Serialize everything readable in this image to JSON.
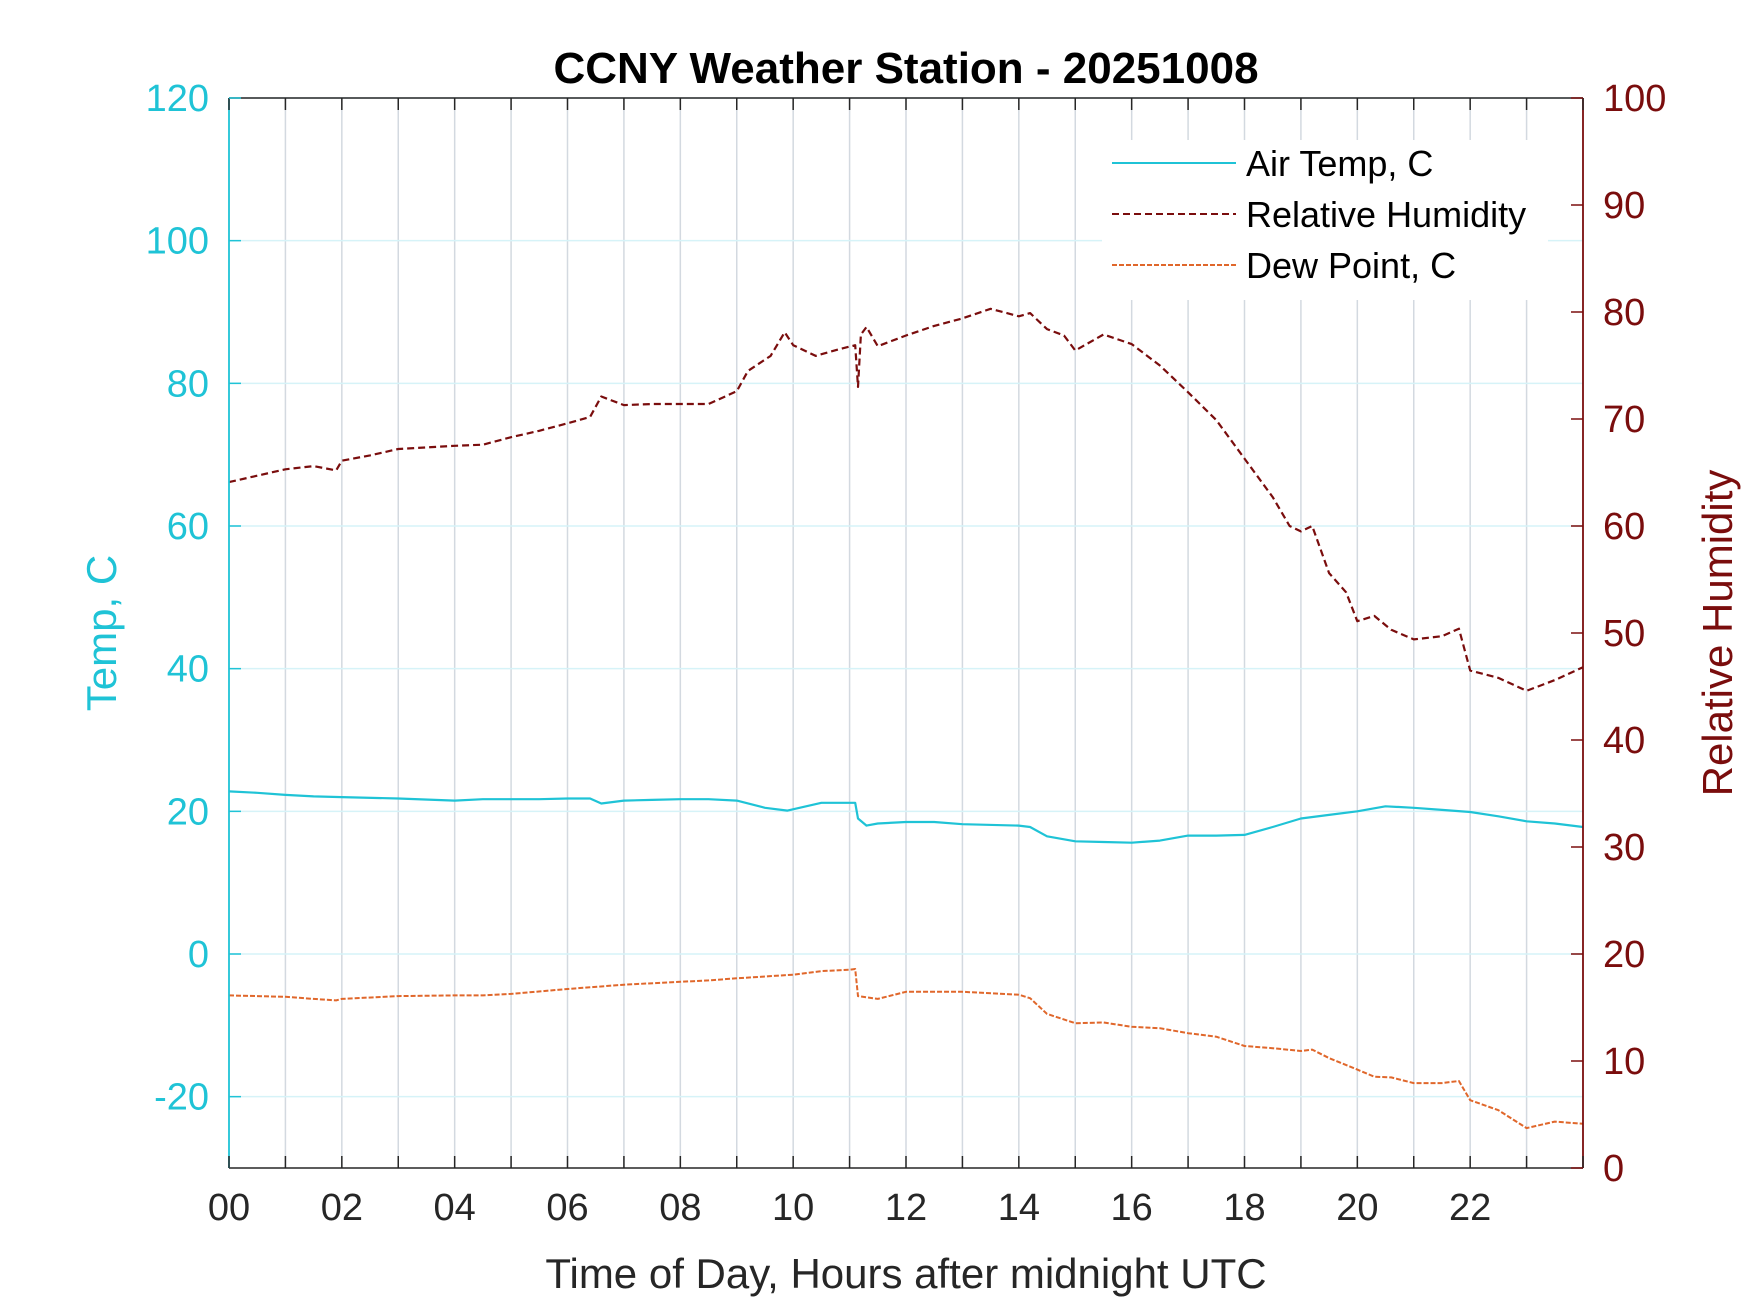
{
  "chart_data": {
    "type": "line",
    "title": "CCNY Weather Station - 20251008",
    "xlabel": "Time of Day, Hours after midnight UTC",
    "ylabel_left": "Temp, C",
    "ylabel_right": "Relative Humidity",
    "xlim": [
      0,
      24
    ],
    "ylim_left": [
      -30,
      120
    ],
    "ylim_right": [
      0,
      100
    ],
    "x_ticks": [
      0,
      2,
      4,
      6,
      8,
      10,
      12,
      14,
      16,
      18,
      20,
      22
    ],
    "x_tick_labels": [
      "00",
      "02",
      "04",
      "06",
      "08",
      "10",
      "12",
      "14",
      "16",
      "18",
      "20",
      "22"
    ],
    "y_left_ticks": [
      -20,
      0,
      20,
      40,
      60,
      80,
      100,
      120
    ],
    "y_left_tick_labels": [
      "-20",
      "0",
      "20",
      "40",
      "60",
      "80",
      "100",
      "120"
    ],
    "y_right_ticks": [
      0,
      10,
      20,
      30,
      40,
      50,
      60,
      70,
      80,
      90,
      100
    ],
    "y_right_tick_labels": [
      "0",
      "10",
      "20",
      "30",
      "40",
      "50",
      "60",
      "70",
      "80",
      "90",
      "100"
    ],
    "grid": true,
    "legend_position": "top-right",
    "colors": {
      "left_axis": "#1fc3d6",
      "right_axis": "#7a0d0d",
      "dew_point": "#e0672b",
      "grid_vertical": "#d3d9e0",
      "grid_horizontal": "#d6f3f8",
      "frame": "#262626"
    },
    "series": [
      {
        "name": "Air Temp, C",
        "axis": "left",
        "style": "solid",
        "x": [
          0,
          0.5,
          1,
          1.5,
          2,
          3,
          4,
          4.5,
          5,
          5.5,
          6,
          6.4,
          6.6,
          7,
          7.5,
          8,
          8.5,
          9,
          9.5,
          9.9,
          10.5,
          11.1,
          11.15,
          11.3,
          11.5,
          12,
          12.5,
          13,
          14,
          14.2,
          14.5,
          15,
          15.5,
          16,
          16.5,
          17,
          17.5,
          18,
          18.5,
          19,
          19.5,
          20,
          20.5,
          21,
          21.5,
          22,
          22.5,
          23,
          23.5,
          24
        ],
        "values": [
          22.8,
          22.6,
          22.3,
          22.1,
          22.0,
          21.8,
          21.5,
          21.7,
          21.7,
          21.7,
          21.8,
          21.8,
          21.1,
          21.5,
          21.6,
          21.7,
          21.7,
          21.5,
          20.5,
          20.1,
          21.2,
          21.2,
          19.0,
          18.0,
          18.3,
          18.5,
          18.5,
          18.2,
          18.0,
          17.8,
          16.5,
          15.8,
          15.7,
          15.6,
          15.9,
          16.6,
          16.6,
          16.7,
          17.8,
          19.0,
          19.5,
          20.0,
          20.7,
          20.5,
          20.2,
          19.9,
          19.3,
          18.6,
          18.3,
          17.8
        ]
      },
      {
        "name": "Relative Humidity",
        "axis": "right",
        "style": "dashed",
        "x": [
          0,
          0.5,
          1,
          1.5,
          1.9,
          2,
          2.5,
          3,
          4,
          4.5,
          5,
          5.5,
          6,
          6.4,
          6.6,
          7,
          7.5,
          8,
          8.5,
          9,
          9.2,
          9.6,
          9.85,
          10,
          10.4,
          10.8,
          11.1,
          11.15,
          11.2,
          11.3,
          11.5,
          12,
          12.5,
          13,
          13.5,
          14,
          14.2,
          14.5,
          14.8,
          15,
          15.5,
          16,
          16.5,
          17,
          17.5,
          18,
          18.5,
          18.8,
          19,
          19.2,
          19.5,
          19.8,
          20,
          20.3,
          20.6,
          21,
          21.5,
          21.8,
          22,
          22.5,
          23,
          23.5,
          24
        ],
        "values": [
          64.1,
          64.7,
          65.3,
          65.6,
          65.2,
          66.1,
          66.6,
          67.2,
          67.5,
          67.6,
          68.3,
          68.9,
          69.6,
          70.2,
          72.1,
          71.3,
          71.4,
          71.4,
          71.4,
          72.6,
          74.5,
          75.9,
          78.1,
          76.9,
          75.9,
          76.5,
          76.9,
          73.0,
          77.9,
          78.6,
          76.8,
          77.8,
          78.7,
          79.4,
          80.3,
          79.6,
          79.9,
          78.4,
          77.8,
          76.4,
          77.9,
          77.0,
          75.0,
          72.5,
          69.9,
          66.3,
          62.7,
          60.0,
          59.5,
          60.0,
          55.6,
          53.8,
          51.1,
          51.6,
          50.3,
          49.4,
          49.7,
          50.4,
          46.5,
          45.8,
          44.6,
          45.6,
          46.8
        ]
      },
      {
        "name": "Dew Point, C",
        "axis": "left",
        "style": "dashed",
        "x": [
          0,
          0.5,
          1,
          1.5,
          1.9,
          2,
          3,
          4,
          4.5,
          5,
          6,
          7,
          8,
          8.5,
          9,
          10,
          10.5,
          11,
          11.1,
          11.15,
          11.5,
          12,
          12.5,
          13,
          14,
          14.2,
          14.5,
          15,
          15.5,
          16,
          16.5,
          17,
          17.5,
          18,
          18.5,
          19,
          19.2,
          19.5,
          20,
          20.3,
          20.6,
          21,
          21.5,
          21.8,
          22,
          22.5,
          23,
          23.5,
          24
        ],
        "values": [
          -5.8,
          -5.9,
          -6.0,
          -6.3,
          -6.5,
          -6.3,
          -5.9,
          -5.8,
          -5.8,
          -5.6,
          -4.9,
          -4.3,
          -3.9,
          -3.7,
          -3.4,
          -2.9,
          -2.4,
          -2.2,
          -2.1,
          -5.9,
          -6.3,
          -5.3,
          -5.3,
          -5.3,
          -5.7,
          -6.2,
          -8.4,
          -9.7,
          -9.6,
          -10.2,
          -10.4,
          -11.1,
          -11.6,
          -12.9,
          -13.2,
          -13.6,
          -13.4,
          -14.6,
          -16.2,
          -17.2,
          -17.3,
          -18.1,
          -18.1,
          -17.8,
          -20.5,
          -21.9,
          -24.4,
          -23.5,
          -23.8
        ]
      }
    ]
  }
}
